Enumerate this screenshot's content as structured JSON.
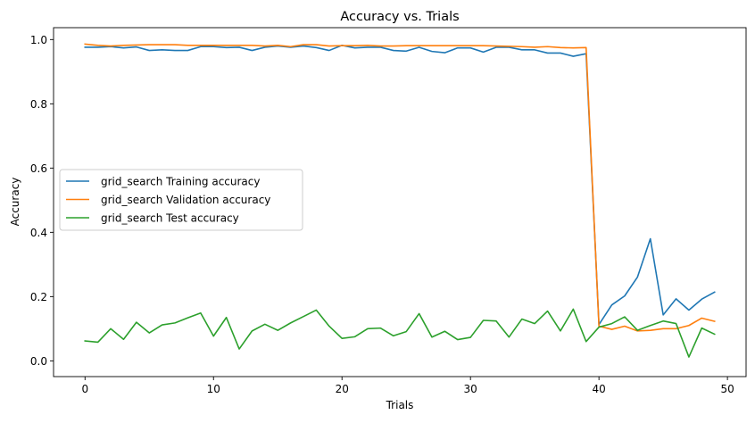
{
  "chart_data": {
    "type": "line",
    "title": "Accuracy vs. Trials",
    "xlabel": "Trials",
    "ylabel": "Accuracy",
    "xlim": [
      -2.45,
      51.45
    ],
    "ylim": [
      -0.049,
      1.037
    ],
    "xticks": [
      0,
      10,
      20,
      30,
      40,
      50
    ],
    "xtick_labels": [
      "0",
      "10",
      "20",
      "30",
      "40",
      "50"
    ],
    "yticks": [
      0.0,
      0.2,
      0.4,
      0.6,
      0.8,
      1.0
    ],
    "ytick_labels": [
      "0.0",
      "0.2",
      "0.4",
      "0.6",
      "0.8",
      "1.0"
    ],
    "grid": false,
    "legend_position": "center-left",
    "x": [
      0,
      1,
      2,
      3,
      4,
      5,
      6,
      7,
      8,
      9,
      10,
      11,
      12,
      13,
      14,
      15,
      16,
      17,
      18,
      19,
      20,
      21,
      22,
      23,
      24,
      25,
      26,
      27,
      28,
      29,
      30,
      31,
      32,
      33,
      34,
      35,
      36,
      37,
      38,
      39,
      40,
      41,
      42,
      43,
      44,
      45,
      46,
      47,
      48,
      49
    ],
    "series": [
      {
        "name": "grid_search Training accuracy",
        "color": "#1f77b4",
        "values": [
          0.976,
          0.976,
          0.978,
          0.974,
          0.977,
          0.966,
          0.968,
          0.966,
          0.966,
          0.978,
          0.978,
          0.975,
          0.976,
          0.966,
          0.976,
          0.98,
          0.976,
          0.98,
          0.975,
          0.966,
          0.982,
          0.974,
          0.976,
          0.976,
          0.966,
          0.964,
          0.976,
          0.963,
          0.959,
          0.974,
          0.974,
          0.961,
          0.976,
          0.976,
          0.968,
          0.968,
          0.958,
          0.958,
          0.948,
          0.956,
          0.113,
          0.174,
          0.202,
          0.261,
          0.38,
          0.143,
          0.193,
          0.158,
          0.192,
          0.214
        ]
      },
      {
        "name": "grid_search Validation accuracy",
        "color": "#ff7f0e",
        "values": [
          0.986,
          0.982,
          0.98,
          0.982,
          0.983,
          0.984,
          0.984,
          0.984,
          0.982,
          0.982,
          0.982,
          0.982,
          0.982,
          0.982,
          0.98,
          0.982,
          0.978,
          0.984,
          0.984,
          0.98,
          0.981,
          0.981,
          0.982,
          0.98,
          0.98,
          0.981,
          0.981,
          0.981,
          0.981,
          0.981,
          0.981,
          0.981,
          0.98,
          0.979,
          0.978,
          0.976,
          0.978,
          0.975,
          0.974,
          0.975,
          0.108,
          0.098,
          0.108,
          0.093,
          0.095,
          0.1,
          0.1,
          0.11,
          0.133,
          0.123
        ]
      },
      {
        "name": "grid_search Test accuracy",
        "color": "#2ca02c",
        "values": [
          0.062,
          0.058,
          0.1,
          0.067,
          0.12,
          0.087,
          0.112,
          0.118,
          0.134,
          0.149,
          0.077,
          0.135,
          0.037,
          0.093,
          0.114,
          0.095,
          0.118,
          0.138,
          0.158,
          0.108,
          0.07,
          0.075,
          0.1,
          0.102,
          0.078,
          0.091,
          0.147,
          0.074,
          0.092,
          0.066,
          0.073,
          0.126,
          0.124,
          0.074,
          0.13,
          0.116,
          0.155,
          0.093,
          0.161,
          0.06,
          0.105,
          0.116,
          0.137,
          0.095,
          0.11,
          0.124,
          0.116,
          0.012,
          0.102,
          0.083
        ]
      }
    ]
  }
}
